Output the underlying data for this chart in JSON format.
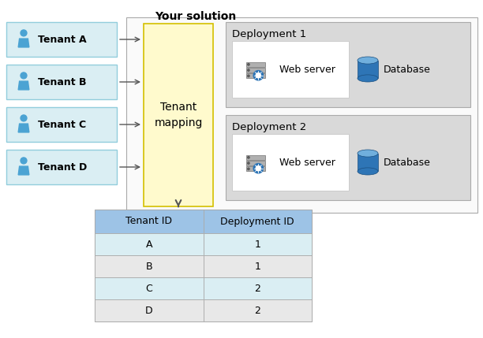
{
  "title": "Your solution",
  "tenant_boxes": [
    "Tenant A",
    "Tenant B",
    "Tenant C",
    "Tenant D"
  ],
  "tenant_box_color": "#DAEEF3",
  "tenant_box_border": "#92CDDC",
  "mapping_box_color": "#FFFACD",
  "mapping_box_border": "#D4C000",
  "mapping_label": "Tenant\nmapping",
  "deployment_labels": [
    "Deployment 1",
    "Deployment 2"
  ],
  "deployment_bg": "#D9D9D9",
  "deployment_border": "#AAAAAA",
  "webserver_box_color": "#FFFFFF",
  "webserver_label": "Web server",
  "database_label": "Database",
  "table_header_color": "#9DC3E6",
  "table_row_even_color": "#DAEEF3",
  "table_row_odd_color": "#E8E8E8",
  "table_border_color": "#AAAAAA",
  "table_bg": "#FFFFFF",
  "table_col1_header": "Tenant ID",
  "table_col2_header": "Deployment ID",
  "table_rows": [
    [
      "A",
      "1"
    ],
    [
      "B",
      "1"
    ],
    [
      "C",
      "2"
    ],
    [
      "D",
      "2"
    ]
  ],
  "solution_box_border": "#AAAAAA",
  "solution_box_bg": "#FFFFFF",
  "bg_color": "#FFFFFF",
  "arrow_color": "#555555",
  "person_color": "#4BA3D3",
  "server_body_color": "#AAAAAA",
  "server_stripe_color": "#888888",
  "server_gear_color": "#2E75B6",
  "db_body_color": "#2E75B6",
  "db_top_color": "#70AFDD",
  "db_dark_color": "#1A4F80"
}
